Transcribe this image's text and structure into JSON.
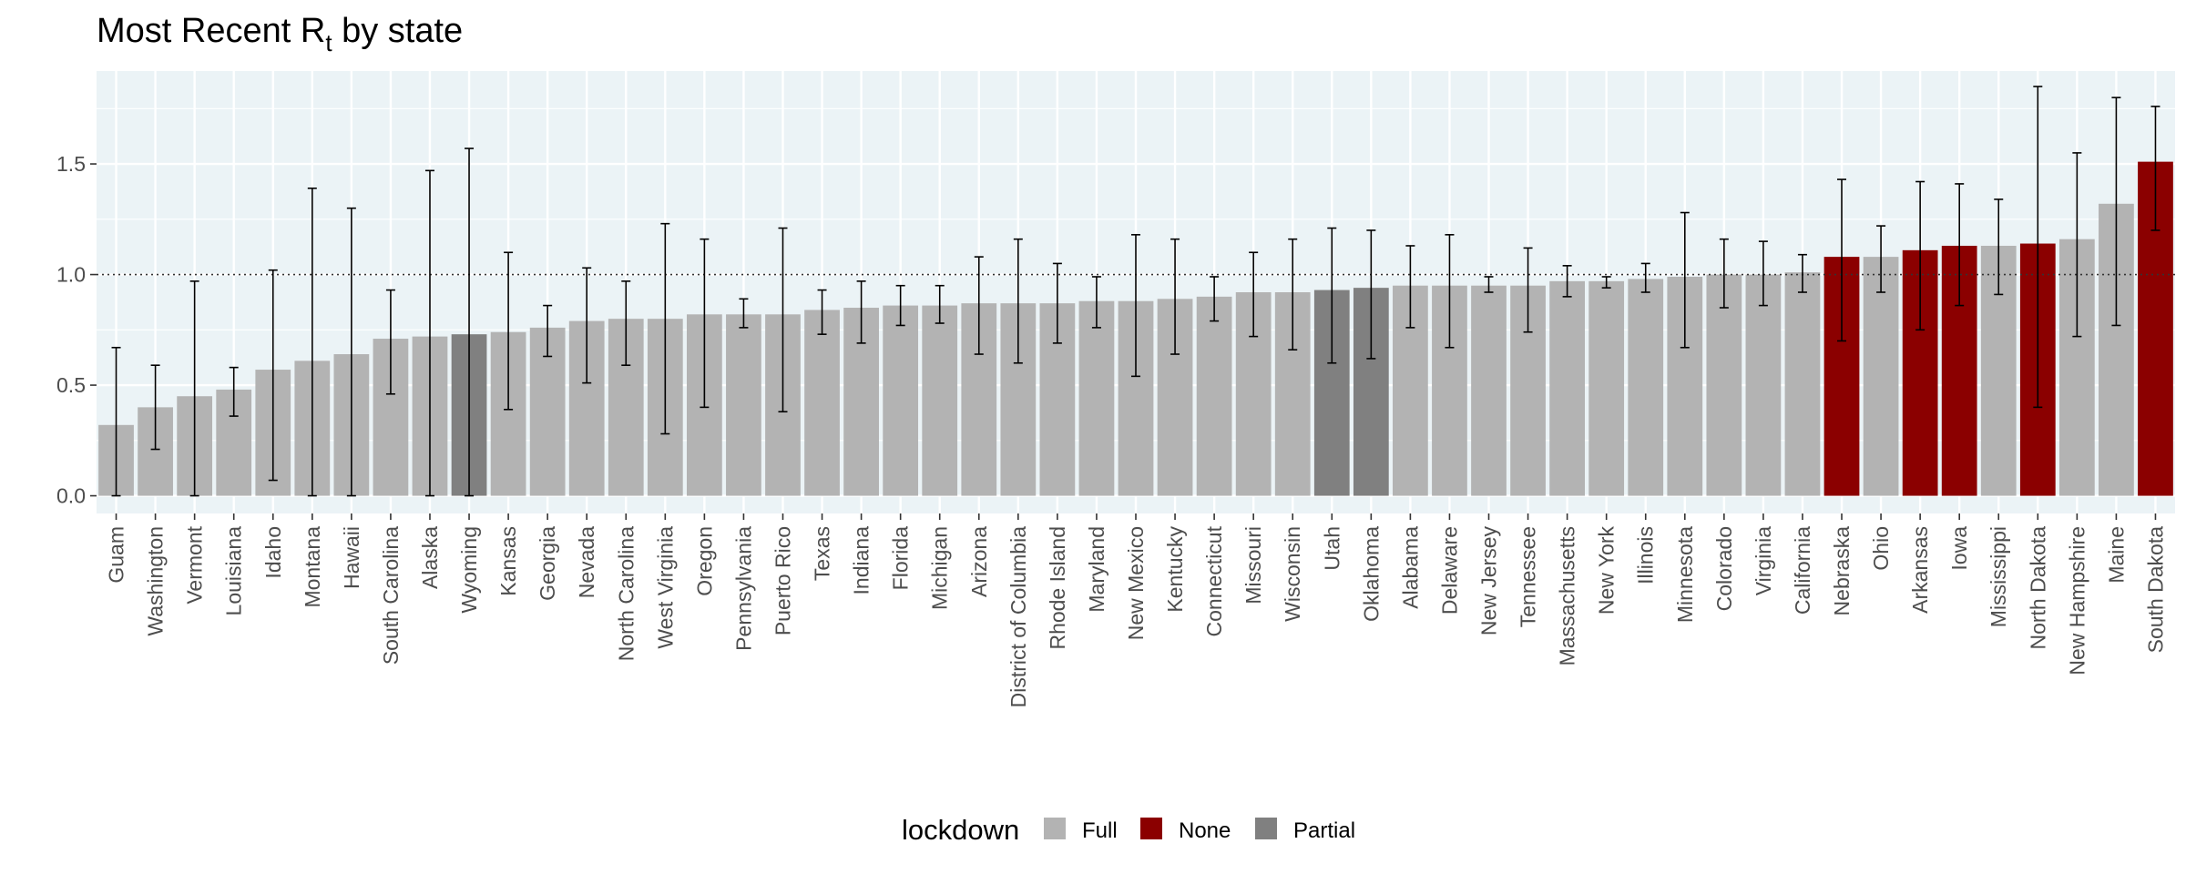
{
  "chart_data": {
    "type": "bar",
    "title": {
      "main": "Most Recent R",
      "sub": "t",
      "rest": " by state"
    },
    "xlabel": "",
    "ylabel": "",
    "ylim": [
      -0.08,
      1.92
    ],
    "yticks": [
      0.0,
      0.5,
      1.0,
      1.5
    ],
    "ytick_labels": [
      "0.0",
      "0.5",
      "1.0",
      "1.5"
    ],
    "reference_line": 1.0,
    "grid": true,
    "legend": {
      "title": "lockdown",
      "placement": "bottom",
      "entries": [
        {
          "label": "Full",
          "color": "#b3b3b3"
        },
        {
          "label": "None",
          "color": "#8b0000"
        },
        {
          "label": "Partial",
          "color": "#808080"
        }
      ]
    },
    "categories": [
      "Guam",
      "Washington",
      "Vermont",
      "Louisiana",
      "Idaho",
      "Montana",
      "Hawaii",
      "South Carolina",
      "Alaska",
      "Wyoming",
      "Kansas",
      "Georgia",
      "Nevada",
      "North Carolina",
      "West Virginia",
      "Oregon",
      "Pennsylvania",
      "Puerto Rico",
      "Texas",
      "Indiana",
      "Florida",
      "Michigan",
      "Arizona",
      "District of Columbia",
      "Rhode Island",
      "Maryland",
      "New Mexico",
      "Kentucky",
      "Connecticut",
      "Missouri",
      "Wisconsin",
      "Utah",
      "Oklahoma",
      "Alabama",
      "Delaware",
      "New Jersey",
      "Tennessee",
      "Massachusetts",
      "New York",
      "Illinois",
      "Minnesota",
      "Colorado",
      "Virginia",
      "California",
      "Nebraska",
      "Ohio",
      "Arkansas",
      "Iowa",
      "Mississippi",
      "North Dakota",
      "New Hampshire",
      "Maine",
      "South Dakota"
    ],
    "values": [
      0.32,
      0.4,
      0.45,
      0.48,
      0.57,
      0.61,
      0.64,
      0.71,
      0.72,
      0.73,
      0.74,
      0.76,
      0.79,
      0.8,
      0.8,
      0.82,
      0.82,
      0.82,
      0.84,
      0.85,
      0.86,
      0.86,
      0.87,
      0.87,
      0.87,
      0.88,
      0.88,
      0.89,
      0.9,
      0.92,
      0.92,
      0.93,
      0.94,
      0.95,
      0.95,
      0.95,
      0.95,
      0.97,
      0.97,
      0.98,
      0.99,
      1.0,
      1.0,
      1.01,
      1.08,
      1.08,
      1.11,
      1.13,
      1.13,
      1.14,
      1.16,
      1.32,
      1.51
    ],
    "lower": [
      0.0,
      0.21,
      0.0,
      0.36,
      0.07,
      0.0,
      0.0,
      0.46,
      0.0,
      0.0,
      0.39,
      0.63,
      0.51,
      0.59,
      0.28,
      0.4,
      0.76,
      0.38,
      0.73,
      0.69,
      0.77,
      0.78,
      0.64,
      0.6,
      0.69,
      0.76,
      0.54,
      0.64,
      0.79,
      0.72,
      0.66,
      0.6,
      0.62,
      0.76,
      0.67,
      0.92,
      0.74,
      0.9,
      0.94,
      0.92,
      0.67,
      0.85,
      0.86,
      0.92,
      0.7,
      0.92,
      0.75,
      0.86,
      0.91,
      0.4,
      0.72,
      0.77,
      1.2
    ],
    "upper": [
      0.67,
      0.59,
      0.97,
      0.58,
      1.02,
      1.39,
      1.3,
      0.93,
      1.47,
      1.57,
      1.1,
      0.86,
      1.03,
      0.97,
      1.23,
      1.16,
      0.89,
      1.21,
      0.93,
      0.97,
      0.95,
      0.95,
      1.08,
      1.16,
      1.05,
      0.99,
      1.18,
      1.16,
      0.99,
      1.1,
      1.16,
      1.21,
      1.2,
      1.13,
      1.18,
      0.99,
      1.12,
      1.04,
      0.99,
      1.05,
      1.28,
      1.16,
      1.15,
      1.09,
      1.43,
      1.22,
      1.42,
      1.41,
      1.34,
      1.85,
      1.55,
      1.8,
      1.76
    ],
    "lockdown": [
      "Full",
      "Full",
      "Full",
      "Full",
      "Full",
      "Full",
      "Full",
      "Full",
      "Full",
      "Partial",
      "Full",
      "Full",
      "Full",
      "Full",
      "Full",
      "Full",
      "Full",
      "Full",
      "Full",
      "Full",
      "Full",
      "Full",
      "Full",
      "Full",
      "Full",
      "Full",
      "Full",
      "Full",
      "Full",
      "Full",
      "Full",
      "Partial",
      "Partial",
      "Full",
      "Full",
      "Full",
      "Full",
      "Full",
      "Full",
      "Full",
      "Full",
      "Full",
      "Full",
      "Full",
      "None",
      "Full",
      "None",
      "None",
      "Full",
      "None",
      "Full",
      "Full",
      "None"
    ]
  }
}
